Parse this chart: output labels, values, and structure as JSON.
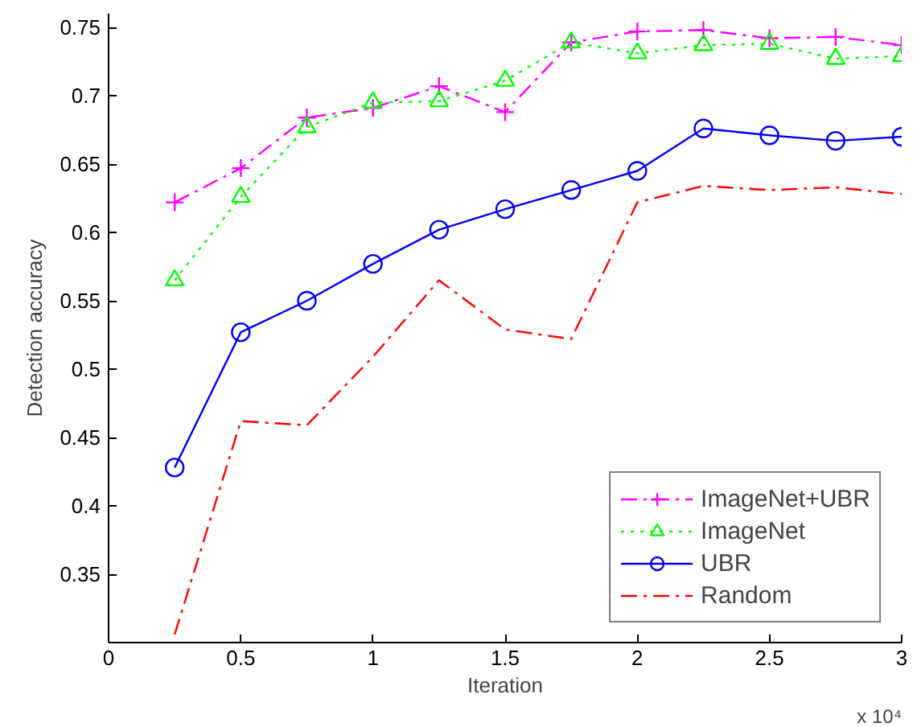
{
  "chart_data": {
    "type": "line",
    "xlabel": "Iteration",
    "ylabel": "Detection accuracy",
    "annotations": [
      "x 10⁴"
    ],
    "x": [
      0.25,
      0.5,
      0.75,
      1.0,
      1.25,
      1.5,
      1.75,
      2.0,
      2.25,
      2.5,
      2.75,
      3.0
    ],
    "series": [
      {
        "name": "ImageNet+UBR",
        "color": "#ff00ff",
        "marker": "cross",
        "line_style": "dashdot",
        "values": [
          0.622,
          0.647,
          0.684,
          0.691,
          0.707,
          0.688,
          0.739,
          0.747,
          0.748,
          0.742,
          0.743,
          0.737
        ]
      },
      {
        "name": "ImageNet",
        "color": "#00ff00",
        "marker": "triangle",
        "line_style": "dotted",
        "values": [
          0.565,
          0.626,
          0.677,
          0.695,
          0.696,
          0.711,
          0.739,
          0.731,
          0.737,
          0.738,
          0.727,
          0.729
        ]
      },
      {
        "name": "UBR",
        "color": "#0000ff",
        "marker": "circle",
        "line_style": "solid",
        "values": [
          0.428,
          0.527,
          0.55,
          0.577,
          0.602,
          0.617,
          0.631,
          0.645,
          0.676,
          0.671,
          0.667,
          0.67
        ]
      },
      {
        "name": "Random",
        "color": "#ff0000",
        "marker": "none",
        "line_style": "dashdot",
        "values": [
          0.306,
          0.462,
          0.459,
          0.509,
          0.565,
          0.529,
          0.522,
          0.622,
          0.634,
          0.631,
          0.633,
          0.628
        ]
      }
    ],
    "xlim": [
      0,
      3
    ],
    "ylim": [
      0.3,
      0.76
    ],
    "xticks": [
      0,
      0.5,
      1,
      1.5,
      2,
      2.5,
      3
    ],
    "yticks": [
      0.35,
      0.4,
      0.45,
      0.5,
      0.55,
      0.6,
      0.65,
      0.7,
      0.75
    ],
    "grid": false,
    "legend": "bottom right"
  }
}
